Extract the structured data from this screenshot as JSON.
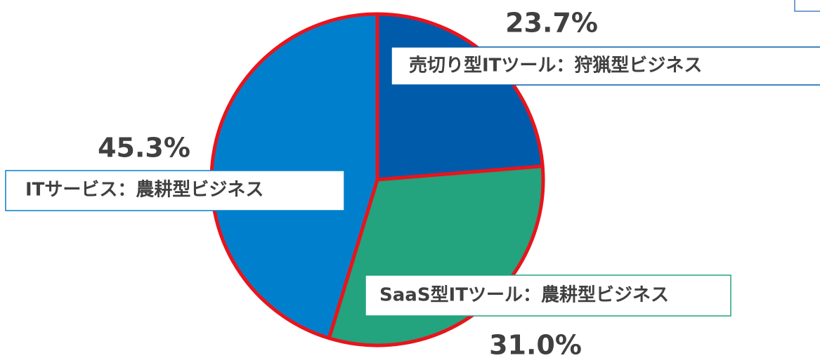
{
  "chart_data": {
    "type": "pie",
    "categories": [
      "売切り型ITツール：狩猟型ビジネス",
      "SaaS型ITツール：農耕型ビジネス",
      "ITサービス：農耕型ビジネス"
    ],
    "values": [
      23.7,
      31.0,
      45.3
    ],
    "value_labels": [
      "23.7%",
      "31.0%",
      "45.3%"
    ],
    "colors": [
      "#005bab",
      "#23a37e",
      "#0080cc"
    ]
  }
}
